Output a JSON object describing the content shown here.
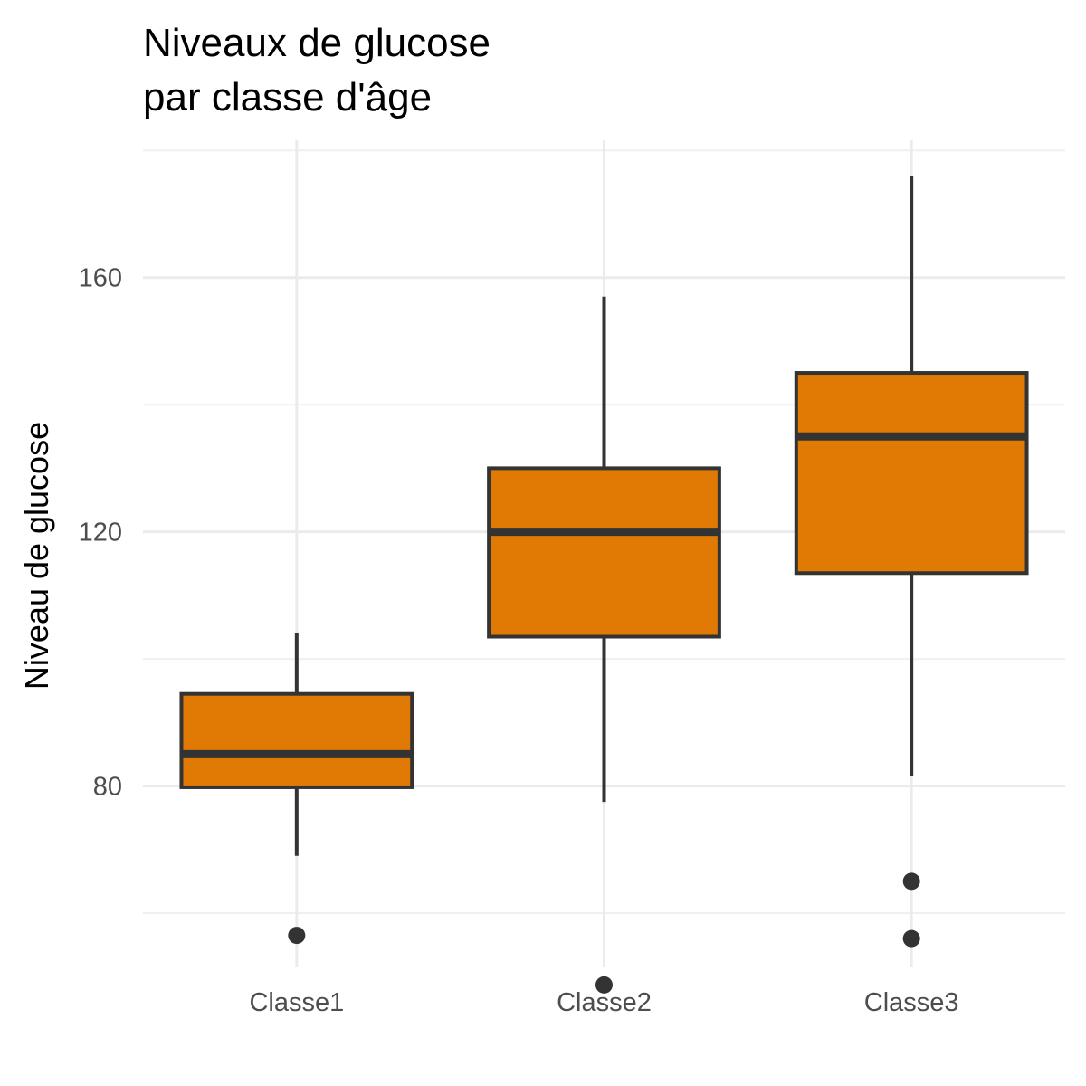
{
  "chart_data": {
    "type": "boxplot",
    "title": [
      "Niveaux de glucose",
      "par classe d'âge"
    ],
    "xlabel": "",
    "ylabel": "Niveau de glucose",
    "ylim": [
      51.6,
      181.6
    ],
    "yticks": [
      80,
      120,
      160
    ],
    "categories": [
      "Classe1",
      "Classe2",
      "Classe3"
    ],
    "boxes": [
      {
        "category": "Classe1",
        "whisker_low": 69,
        "q1": 79.8,
        "median": 85,
        "q3": 94.5,
        "whisker_high": 104,
        "outliers": [
          56.5
        ]
      },
      {
        "category": "Classe2",
        "whisker_low": 77.5,
        "q1": 103.5,
        "median": 120,
        "q3": 130,
        "whisker_high": 157,
        "outliers": [
          48.7
        ]
      },
      {
        "category": "Classe3",
        "whisker_low": 81.5,
        "q1": 113.5,
        "median": 135,
        "q3": 145,
        "whisker_high": 176,
        "outliers": [
          65,
          56
        ]
      }
    ],
    "fill_color": "#E07A05",
    "outline_color": "#333333",
    "grid": true,
    "legend": "none"
  }
}
